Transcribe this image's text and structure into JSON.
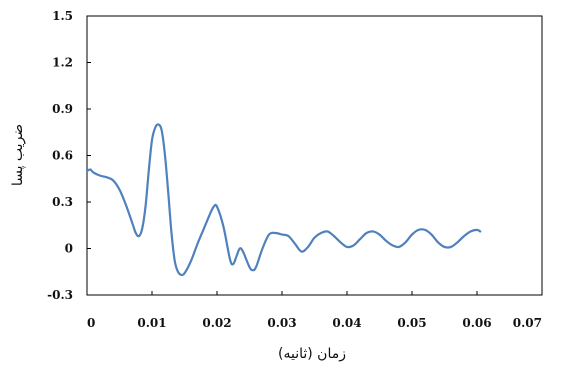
{
  "chart_data": {
    "type": "line",
    "xlabel": "زمان (ثانیه)",
    "ylabel": "ضریب پسا",
    "xlim": [
      0,
      0.07
    ],
    "ylim": [
      -0.3,
      1.5
    ],
    "x_ticks": [
      "0",
      "0.01",
      "0.02",
      "0.03",
      "0.04",
      "0.05",
      "0.06",
      "0.07"
    ],
    "y_ticks": [
      "1.5",
      "1.2",
      "0.9",
      "0.6",
      "0.3",
      "0",
      "-0.3"
    ],
    "grid": false,
    "line_color": "#4f81bd",
    "series": [
      {
        "x": [
          0,
          0.0005,
          0.001,
          0.002,
          0.003,
          0.004,
          0.005,
          0.006,
          0.007,
          0.0075,
          0.008,
          0.0085,
          0.009,
          0.0095,
          0.01,
          0.0105,
          0.011,
          0.0115,
          0.012,
          0.0125,
          0.013,
          0.0135,
          0.014,
          0.0145,
          0.015,
          0.016,
          0.017,
          0.018,
          0.019,
          0.0195,
          0.02,
          0.021,
          0.022,
          0.0225,
          0.023,
          0.0235,
          0.024,
          0.025,
          0.0255,
          0.026,
          0.027,
          0.028,
          0.029,
          0.03,
          0.031,
          0.032,
          0.033,
          0.034,
          0.035,
          0.036,
          0.037,
          0.038,
          0.039,
          0.04,
          0.041,
          0.042,
          0.043,
          0.044,
          0.045,
          0.046,
          0.047,
          0.048,
          0.049,
          0.05,
          0.051,
          0.052,
          0.053,
          0.054,
          0.055,
          0.056,
          0.057,
          0.058,
          0.059,
          0.06,
          0.0605
        ],
        "y": [
          0.5,
          0.51,
          0.49,
          0.47,
          0.46,
          0.44,
          0.38,
          0.28,
          0.16,
          0.1,
          0.08,
          0.13,
          0.27,
          0.5,
          0.7,
          0.78,
          0.8,
          0.76,
          0.6,
          0.36,
          0.1,
          -0.08,
          -0.15,
          -0.17,
          -0.16,
          -0.08,
          0.03,
          0.13,
          0.23,
          0.27,
          0.27,
          0.14,
          -0.07,
          -0.1,
          -0.05,
          0.0,
          -0.02,
          -0.12,
          -0.14,
          -0.12,
          0.0,
          0.09,
          0.1,
          0.09,
          0.08,
          0.03,
          -0.02,
          0.01,
          0.07,
          0.1,
          0.11,
          0.08,
          0.04,
          0.01,
          0.02,
          0.06,
          0.1,
          0.11,
          0.09,
          0.05,
          0.02,
          0.01,
          0.04,
          0.09,
          0.12,
          0.12,
          0.09,
          0.04,
          0.01,
          0.01,
          0.04,
          0.08,
          0.11,
          0.12,
          0.11
        ]
      }
    ]
  }
}
